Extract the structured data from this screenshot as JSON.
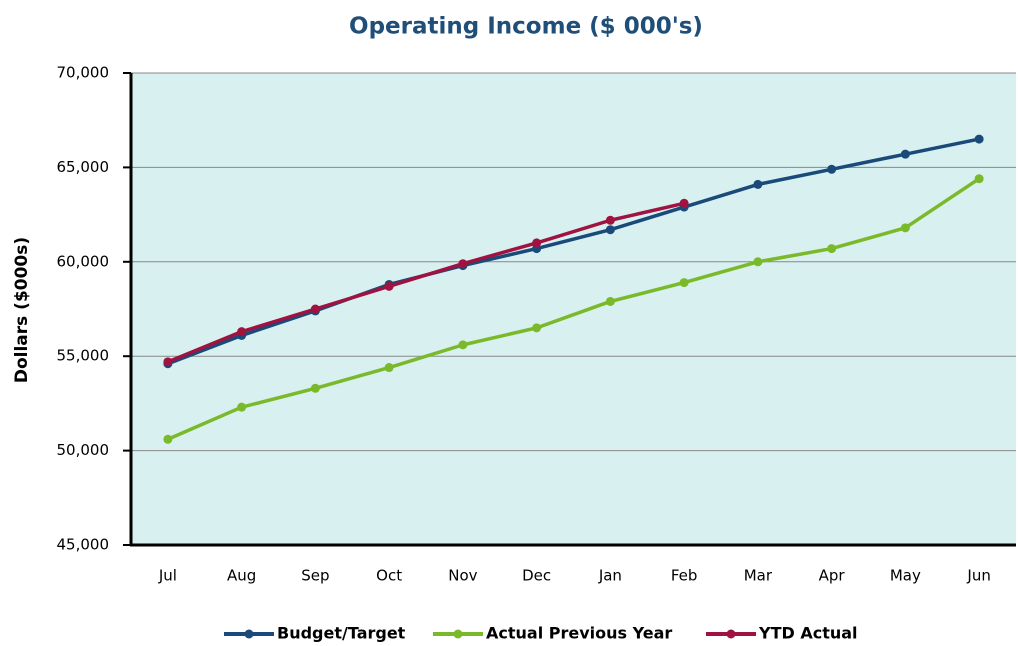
{
  "chart_data": {
    "type": "line",
    "title": "Operating Income ($ 000's)",
    "y_label": "Dollars ($000s)",
    "categories": [
      "Jul",
      "Aug",
      "Sep",
      "Oct",
      "Nov",
      "Dec",
      "Jan",
      "Feb",
      "Mar",
      "Apr",
      "May",
      "Jun"
    ],
    "series": [
      {
        "name": "Budget/Target",
        "color": "#1a4a7a",
        "values": [
          54600,
          56100,
          57400,
          58800,
          59800,
          60700,
          61700,
          62900,
          64100,
          64900,
          65700,
          66500
        ]
      },
      {
        "name": "Actual Previous Year",
        "color": "#7ab929",
        "values": [
          50600,
          52300,
          53300,
          54400,
          55600,
          56500,
          57900,
          58900,
          60000,
          60700,
          61800,
          64400
        ]
      },
      {
        "name": "YTD Actual",
        "color": "#a0123f",
        "values": [
          54700,
          56300,
          57500,
          58700,
          59900,
          61000,
          62200,
          63100,
          null,
          null,
          null,
          null
        ]
      }
    ],
    "ylim": [
      45000,
      70000
    ],
    "yticks": [
      {
        "value": 45000,
        "label": "45,000"
      },
      {
        "value": 50000,
        "label": "50,000"
      },
      {
        "value": 55000,
        "label": "55,000"
      },
      {
        "value": 60000,
        "label": "60,000"
      },
      {
        "value": 65000,
        "label": "65,000"
      },
      {
        "value": 70000,
        "label": "70,000"
      }
    ],
    "grid": true,
    "background": "#d9f0f0",
    "legend": "bottom"
  }
}
